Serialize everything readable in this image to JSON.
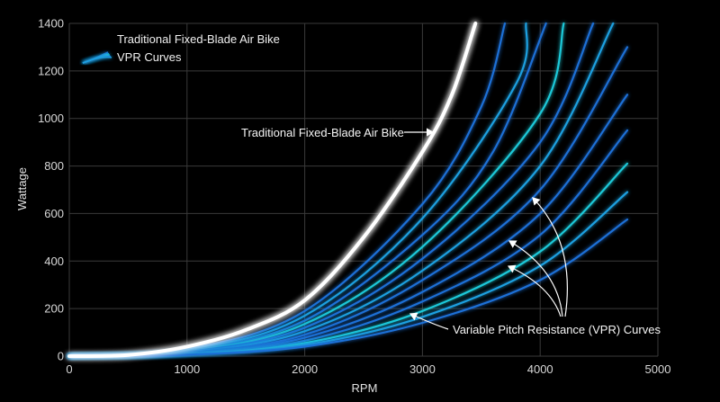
{
  "chart_data": {
    "type": "line",
    "title": "",
    "xlabel": "RPM",
    "ylabel": "Wattage",
    "xlim": [
      0,
      5000
    ],
    "ylim": [
      0,
      1400
    ],
    "xticks": [
      0,
      1000,
      2000,
      3000,
      4000,
      5000
    ],
    "yticks": [
      0,
      200,
      400,
      600,
      800,
      1000,
      1200,
      1400
    ],
    "grid": true,
    "legend": {
      "placement": "top-left",
      "entries": [
        "Traditional Fixed-Blade Air Bike",
        "VPR Curves"
      ]
    },
    "series": [
      {
        "name": "Traditional Fixed-Blade Air Bike",
        "color": "#ffffff",
        "x": [
          0,
          500,
          1000,
          1500,
          2000,
          2500,
          3000,
          3250,
          3450
        ],
        "y": [
          0,
          5,
          40,
          110,
          235,
          500,
          860,
          1100,
          1400
        ]
      },
      {
        "color": "#1f6fd6",
        "x": [
          0,
          1000,
          2000,
          3000,
          3500,
          3700
        ],
        "y": [
          0,
          30,
          190,
          640,
          1050,
          1400
        ]
      },
      {
        "color": "#1fa0e0",
        "x": [
          0,
          1000,
          2000,
          3000,
          3800,
          3880
        ],
        "y": [
          0,
          25,
          170,
          580,
          1150,
          1400
        ]
      },
      {
        "color": "#1f6fd6",
        "x": [
          0,
          1000,
          2000,
          3000,
          3600,
          4050
        ],
        "y": [
          0,
          22,
          150,
          510,
          860,
          1400
        ]
      },
      {
        "color": "#1ec8d8",
        "x": [
          0,
          1000,
          2000,
          3000,
          4000,
          4200
        ],
        "y": [
          0,
          20,
          135,
          460,
          1020,
          1400
        ]
      },
      {
        "color": "#1f6fd6",
        "x": [
          0,
          1000,
          2000,
          3000,
          4000,
          4450
        ],
        "y": [
          0,
          18,
          120,
          410,
          900,
          1400
        ]
      },
      {
        "color": "#1fa0e0",
        "x": [
          0,
          1000,
          2000,
          3000,
          4000,
          4620
        ],
        "y": [
          0,
          16,
          105,
          360,
          800,
          1400
        ]
      },
      {
        "color": "#1f6fd6",
        "x": [
          0,
          1000,
          2000,
          3000,
          4000,
          4740
        ],
        "y": [
          0,
          14,
          90,
          320,
          700,
          1300
        ]
      },
      {
        "color": "#1f6fd6",
        "x": [
          0,
          1000,
          2000,
          3000,
          4000,
          4740
        ],
        "y": [
          0,
          12,
          78,
          270,
          600,
          1100
        ]
      },
      {
        "color": "#1f6fd6",
        "x": [
          0,
          1000,
          2000,
          3000,
          4000,
          4740
        ],
        "y": [
          0,
          10,
          65,
          230,
          510,
          950
        ]
      },
      {
        "color": "#1ec8d8",
        "x": [
          0,
          1000,
          2000,
          3000,
          4000,
          4740
        ],
        "y": [
          0,
          8,
          55,
          190,
          440,
          810
        ]
      },
      {
        "color": "#1fa0e0",
        "x": [
          0,
          1000,
          2000,
          3000,
          4000,
          4740
        ],
        "y": [
          0,
          7,
          47,
          165,
          380,
          690
        ]
      },
      {
        "color": "#1f6fd6",
        "x": [
          0,
          1000,
          2000,
          3000,
          4000,
          4740
        ],
        "y": [
          0,
          6,
          40,
          140,
          320,
          575
        ]
      }
    ],
    "annotations": [
      {
        "text": "Traditional Fixed-Blade Air Bike",
        "target": "Traditional Fixed-Blade Air Bike"
      },
      {
        "text": "Variable Pitch Resistance (VPR) Curves",
        "target": "VPR Curves"
      }
    ]
  }
}
